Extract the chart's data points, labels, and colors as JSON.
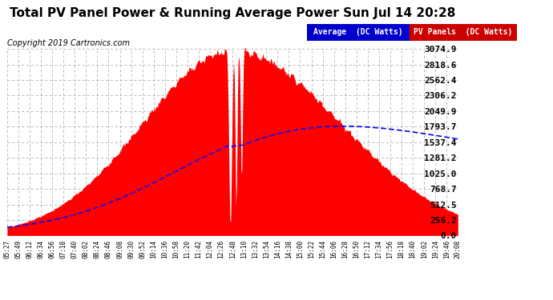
{
  "title": "Total PV Panel Power & Running Average Power Sun Jul 14 20:28",
  "copyright": "Copyright 2019 Cartronics.com",
  "legend_avg": "Average  (DC Watts)",
  "legend_pv": "PV Panels  (DC Watts)",
  "ymax": 3074.9,
  "yticks": [
    0.0,
    256.2,
    512.5,
    768.7,
    1025.0,
    1281.2,
    1537.4,
    1793.7,
    2049.9,
    2306.2,
    2562.4,
    2818.6,
    3074.9
  ],
  "x_labels": [
    "05:27",
    "05:49",
    "06:12",
    "06:34",
    "06:56",
    "07:18",
    "07:40",
    "08:02",
    "08:24",
    "08:46",
    "09:08",
    "09:30",
    "09:52",
    "10:14",
    "10:36",
    "10:58",
    "11:20",
    "11:42",
    "12:04",
    "12:26",
    "12:48",
    "13:10",
    "13:32",
    "13:54",
    "14:16",
    "14:38",
    "15:00",
    "15:22",
    "15:44",
    "16:06",
    "16:28",
    "16:50",
    "17:12",
    "17:34",
    "17:56",
    "18:18",
    "18:40",
    "19:02",
    "19:24",
    "19:46",
    "20:08"
  ],
  "plot_bg_color": "#ffffff",
  "grid_color": "#cccccc",
  "pv_fill_color": "#ff0000",
  "avg_line_color": "#0000ff",
  "figure_bg": "#ffffff",
  "title_fontsize": 11,
  "copyright_fontsize": 7,
  "tick_fontsize": 8,
  "xlabel_fontsize": 5.5
}
